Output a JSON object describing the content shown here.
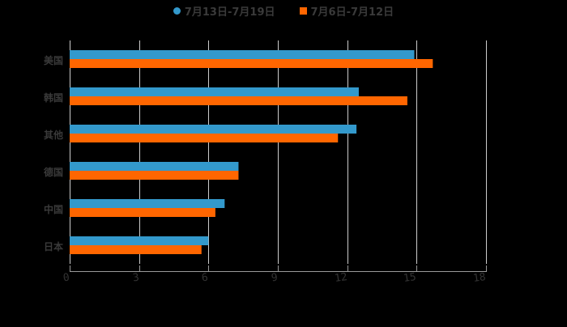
{
  "legend": [
    {
      "label": "7月13日-7月19日",
      "color": "#3399CC",
      "marker": "circle"
    },
    {
      "label": "7月6日-7月12日",
      "color": "#FF6600",
      "marker": "square"
    }
  ],
  "chart_data": {
    "type": "bar",
    "orientation": "horizontal",
    "title": "",
    "xlabel": "",
    "ylabel": "",
    "categories": [
      "美国",
      "韩国",
      "其他",
      "德国",
      "中国",
      "日本"
    ],
    "series": [
      {
        "name": "7月13日-7月19日",
        "color": "#3399CC",
        "values": [
          14.9,
          12.5,
          12.4,
          7.3,
          6.7,
          6.0
        ]
      },
      {
        "name": "7月6日-7月12日",
        "color": "#FF6600",
        "values": [
          15.7,
          14.6,
          11.6,
          7.3,
          6.3,
          5.7
        ]
      }
    ],
    "xlim": [
      0,
      18
    ],
    "xticks": [
      0,
      3,
      6,
      9,
      12,
      15,
      18
    ],
    "grid": true,
    "legend_position": "top"
  },
  "colors": {
    "background": "#000000",
    "grid": "#CCCCCC",
    "text": "#333333"
  }
}
